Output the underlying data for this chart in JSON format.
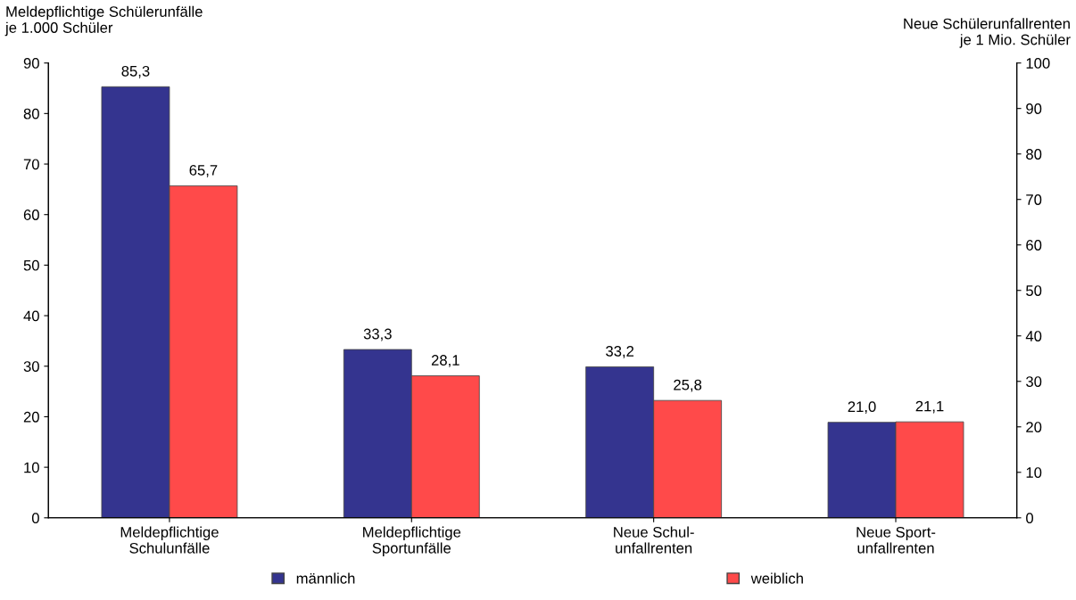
{
  "chart_data": {
    "type": "bar",
    "categories": [
      "Meldepflichtige\nSchulunfälle",
      "Meldepflichtige\nSportunfälle",
      "Neue Schul-\nunfallrenten",
      "Neue Sport-\nunfallrenten"
    ],
    "ylabel": "Meldepflichtige Schülerunfälle\nje 1.000 Schüler",
    "y2label": "Neue Schülerunfallrenten\nje 1 Mio. Schüler",
    "series": [
      {
        "name": "männlich",
        "color": "#34348f",
        "values": [
          85.3,
          33.3,
          null,
          null
        ],
        "value_labels": [
          "85,3",
          "33,3",
          null,
          null
        ]
      },
      {
        "name": "weiblich",
        "color": "#ff4a4a",
        "values": [
          65.7,
          28.1,
          null,
          null
        ],
        "value_labels": [
          "65,7",
          "28,1",
          null,
          null
        ]
      },
      {
        "color": "#34348f",
        "axis": "y2",
        "values": [
          null,
          null,
          33.2,
          21.0
        ],
        "value_labels": [
          null,
          null,
          "33,2",
          "21,0"
        ]
      },
      {
        "color": "#ff4a4a",
        "axis": "y2",
        "values": [
          null,
          null,
          25.8,
          21.1
        ],
        "value_labels": [
          null,
          null,
          "25,8",
          "21,1"
        ]
      }
    ],
    "ylim": [
      0,
      90
    ],
    "yticks": [
      0,
      10,
      20,
      30,
      40,
      50,
      60,
      70,
      80,
      90
    ],
    "y2lim": [
      0,
      100
    ],
    "y2ticks": [
      0,
      10,
      20,
      30,
      40,
      50,
      60,
      70,
      80,
      90,
      100
    ],
    "grid": false,
    "legend": "bottom"
  }
}
